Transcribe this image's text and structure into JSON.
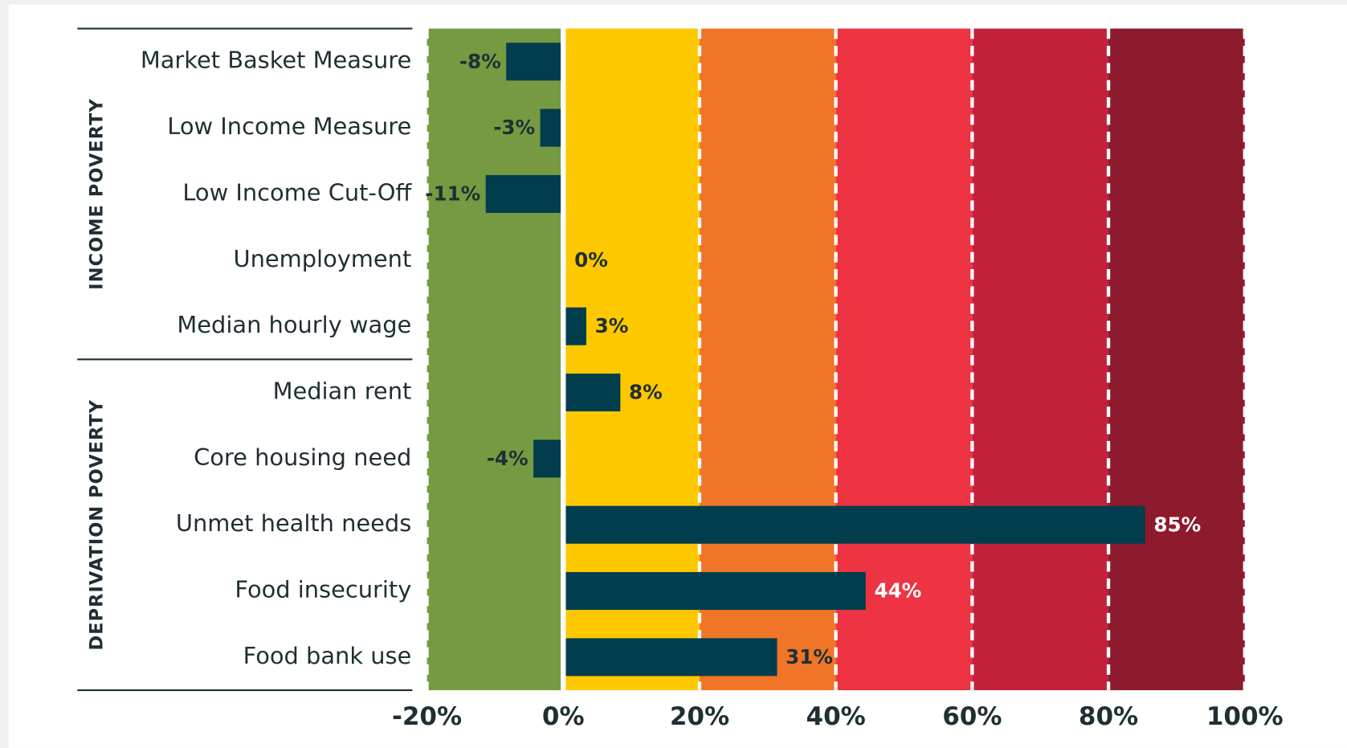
{
  "chart_data": {
    "type": "bar",
    "orientation": "horizontal",
    "categories": [
      "Market Basket Measure",
      "Low Income Measure",
      "Low Income Cut-Off",
      "Unemployment",
      "Median hourly wage",
      "Median rent",
      "Core housing need",
      "Unmet health needs",
      "Food insecurity",
      "Food bank use"
    ],
    "values": [
      -8,
      -3,
      -11,
      0,
      3,
      8,
      -4,
      85,
      44,
      31
    ],
    "value_labels": [
      "-8%",
      "-3%",
      "-11%",
      "0%",
      "3%",
      "8%",
      "-4%",
      "85%",
      "44%",
      "31%"
    ],
    "color": "#023d4d",
    "groups": [
      {
        "name": "INCOME POVERTY",
        "start": 0,
        "end": 4
      },
      {
        "name": "DEPRIVATION POVERTY",
        "start": 5,
        "end": 9
      }
    ],
    "bands": [
      {
        "from": -20,
        "to": 0,
        "color": "#769a42"
      },
      {
        "from": 0,
        "to": 20,
        "color": "#fdc800"
      },
      {
        "from": 20,
        "to": 40,
        "color": "#f07527"
      },
      {
        "from": 40,
        "to": 60,
        "color": "#ee3342"
      },
      {
        "from": 60,
        "to": 80,
        "color": "#c1223a"
      },
      {
        "from": 80,
        "to": 100,
        "color": "#8e1a2d"
      }
    ],
    "xlim": [
      -20,
      100
    ],
    "xticks": [
      {
        "value": -20,
        "label": "-20%"
      },
      {
        "value": 0,
        "label": "0%"
      },
      {
        "value": 20,
        "label": "20%"
      },
      {
        "value": 40,
        "label": "40%"
      },
      {
        "value": 60,
        "label": "60%"
      },
      {
        "value": 80,
        "label": "80%"
      },
      {
        "value": 100,
        "label": "100%"
      }
    ]
  }
}
